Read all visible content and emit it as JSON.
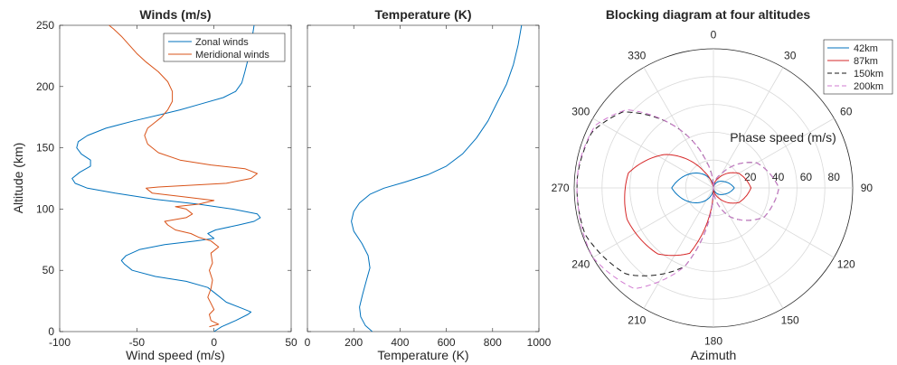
{
  "chart_data": [
    {
      "type": "line",
      "title": "Winds (m/s)",
      "xlabel": "Wind speed (m/s)",
      "ylabel": "Altitude (km)",
      "xlim": [
        -100,
        50
      ],
      "ylim": [
        0,
        250
      ],
      "xticks": [
        -100,
        -50,
        0,
        50
      ],
      "yticks": [
        0,
        50,
        100,
        150,
        200,
        250
      ],
      "grid": false,
      "legend": "top-right",
      "series": [
        {
          "name": "Zonal winds",
          "color": "#0072bd",
          "points": [
            [
              0,
              0
            ],
            [
              5,
              4
            ],
            [
              14,
              9
            ],
            [
              22,
              14
            ],
            [
              24,
              16
            ],
            [
              18,
              19
            ],
            [
              8,
              24
            ],
            [
              2,
              30
            ],
            [
              -4,
              36
            ],
            [
              -18,
              41
            ],
            [
              -38,
              45
            ],
            [
              -53,
              50
            ],
            [
              -58,
              55
            ],
            [
              -60,
              58
            ],
            [
              -57,
              62
            ],
            [
              -48,
              67
            ],
            [
              -32,
              71
            ],
            [
              -12,
              74
            ],
            [
              0,
              76
            ],
            [
              -4,
              80
            ],
            [
              1,
              83
            ],
            [
              16,
              87
            ],
            [
              26,
              90
            ],
            [
              30,
              93
            ],
            [
              28,
              96
            ],
            [
              12,
              100
            ],
            [
              -10,
              104
            ],
            [
              -38,
              108
            ],
            [
              -64,
              113
            ],
            [
              -82,
              117
            ],
            [
              -90,
              121
            ],
            [
              -92,
              125
            ],
            [
              -87,
              130
            ],
            [
              -80,
              135
            ],
            [
              -80,
              140
            ],
            [
              -86,
              145
            ],
            [
              -89,
              150
            ],
            [
              -88,
              155
            ],
            [
              -82,
              160
            ],
            [
              -70,
              166
            ],
            [
              -52,
              172
            ],
            [
              -35,
              177
            ],
            [
              -22,
              181
            ],
            [
              -8,
              186
            ],
            [
              6,
              191
            ],
            [
              14,
              196
            ],
            [
              18,
              203
            ],
            [
              20,
              212
            ],
            [
              22,
              222
            ],
            [
              24,
              232
            ],
            [
              25,
              242
            ],
            [
              26,
              250
            ]
          ]
        },
        {
          "name": "Meridional winds",
          "color": "#d95319",
          "points": [
            [
              -3,
              4
            ],
            [
              3,
              6
            ],
            [
              -2,
              9
            ],
            [
              -3,
              14
            ],
            [
              0,
              18
            ],
            [
              -2,
              23
            ],
            [
              -4,
              28
            ],
            [
              -2,
              35
            ],
            [
              -1,
              42
            ],
            [
              -3,
              50
            ],
            [
              -1,
              56
            ],
            [
              -2,
              64
            ],
            [
              3,
              69
            ],
            [
              -2,
              74
            ],
            [
              -10,
              77
            ],
            [
              -15,
              80
            ],
            [
              -25,
              83
            ],
            [
              -30,
              87
            ],
            [
              -32,
              90
            ],
            [
              -18,
              93
            ],
            [
              -14,
              96
            ],
            [
              -18,
              100
            ],
            [
              -25,
              102
            ],
            [
              -10,
              104
            ],
            [
              0,
              107
            ],
            [
              -20,
              110
            ],
            [
              -40,
              113
            ],
            [
              -44,
              117
            ],
            [
              -36,
              118
            ],
            [
              8,
              121
            ],
            [
              24,
              125
            ],
            [
              28,
              129
            ],
            [
              20,
              133
            ],
            [
              -2,
              136
            ],
            [
              -22,
              140
            ],
            [
              -36,
              146
            ],
            [
              -43,
              153
            ],
            [
              -45,
              160
            ],
            [
              -43,
              166
            ],
            [
              -38,
              171
            ],
            [
              -34,
              175
            ],
            [
              -30,
              181
            ],
            [
              -27,
              188
            ],
            [
              -27,
              196
            ],
            [
              -30,
              204
            ],
            [
              -36,
              212
            ],
            [
              -44,
              220
            ],
            [
              -50,
              227
            ],
            [
              -55,
              234
            ],
            [
              -60,
              241
            ],
            [
              -65,
              247
            ],
            [
              -68,
              250
            ]
          ]
        }
      ]
    },
    {
      "type": "line",
      "title": "Temperature (K)",
      "xlabel": "Temperature (K)",
      "ylabel": "",
      "xlim": [
        0,
        1000
      ],
      "ylim": [
        0,
        250
      ],
      "xticks": [
        0,
        200,
        400,
        600,
        800,
        1000
      ],
      "yticks": [
        0,
        50,
        100,
        150,
        200,
        250
      ],
      "grid": false,
      "series": [
        {
          "color": "#0072bd",
          "points": [
            [
              280,
              0
            ],
            [
              250,
              5
            ],
            [
              230,
              12
            ],
            [
              225,
              20
            ],
            [
              238,
              30
            ],
            [
              255,
              42
            ],
            [
              270,
              52
            ],
            [
              262,
              62
            ],
            [
              235,
              72
            ],
            [
              200,
              82
            ],
            [
              190,
              90
            ],
            [
              200,
              98
            ],
            [
              225,
              105
            ],
            [
              270,
              112
            ],
            [
              330,
              117
            ],
            [
              420,
              122
            ],
            [
              520,
              128
            ],
            [
              600,
              135
            ],
            [
              670,
              145
            ],
            [
              730,
              158
            ],
            [
              780,
              172
            ],
            [
              820,
              187
            ],
            [
              860,
              202
            ],
            [
              890,
              218
            ],
            [
              910,
              234
            ],
            [
              925,
              250
            ]
          ]
        }
      ]
    },
    {
      "type": "polar",
      "title": "Blocking diagram at four altitudes",
      "xlabel": "Azimuth",
      "rlabel": "Phase speed (m/s)",
      "rlim": [
        0,
        100
      ],
      "rticks": [
        20,
        40,
        60,
        80
      ],
      "angle_ticks": [
        0,
        30,
        60,
        90,
        120,
        150,
        180,
        210,
        240,
        270,
        300,
        330
      ],
      "grid": true,
      "legend": "top-right",
      "series": [
        {
          "name": "42km",
          "color": "#0072bd",
          "dash": "solid",
          "points": [
            [
              0,
              0
            ],
            [
              60,
              9
            ],
            [
              90,
              15
            ],
            [
              120,
              9
            ],
            [
              180,
              0
            ],
            [
              240,
              20
            ],
            [
              270,
              30
            ],
            [
              300,
              20
            ],
            [
              360,
              0
            ]
          ]
        },
        {
          "name": "87km",
          "color": "#d62728",
          "dash": "solid",
          "points": [
            [
              0,
              0
            ],
            [
              30,
              9
            ],
            [
              60,
              21
            ],
            [
              90,
              27
            ],
            [
              120,
              21
            ],
            [
              150,
              9
            ],
            [
              180,
              0
            ],
            [
              200,
              50
            ],
            [
              220,
              62
            ],
            [
              250,
              66
            ],
            [
              280,
              62
            ],
            [
              305,
              42
            ],
            [
              330,
              14
            ],
            [
              345,
              3
            ],
            [
              360,
              0
            ]
          ]
        },
        {
          "name": "150km",
          "color": "#1a1a1a",
          "dash": "dashed",
          "points": [
            [
              0,
              0
            ],
            [
              30,
              12
            ],
            [
              60,
              36
            ],
            [
              90,
              47
            ],
            [
              120,
              42
            ],
            [
              150,
              24
            ],
            [
              180,
              0
            ],
            [
              200,
              60
            ],
            [
              225,
              88
            ],
            [
              250,
              98
            ],
            [
              275,
              98
            ],
            [
              295,
              96
            ],
            [
              310,
              85
            ],
            [
              325,
              58
            ],
            [
              345,
              20
            ],
            [
              360,
              0
            ]
          ]
        },
        {
          "name": "200km",
          "color": "#d17bd1",
          "dash": "dashed",
          "points": [
            [
              0,
              0
            ],
            [
              30,
              12
            ],
            [
              60,
              36
            ],
            [
              90,
              47
            ],
            [
              120,
              42
            ],
            [
              150,
              24
            ],
            [
              180,
              0
            ],
            [
              200,
              60
            ],
            [
              218,
              92
            ],
            [
              240,
              100
            ],
            [
              262,
              98
            ],
            [
              280,
              98
            ],
            [
              298,
              96
            ],
            [
              312,
              84
            ],
            [
              325,
              58
            ],
            [
              345,
              20
            ],
            [
              360,
              0
            ]
          ]
        }
      ]
    }
  ]
}
